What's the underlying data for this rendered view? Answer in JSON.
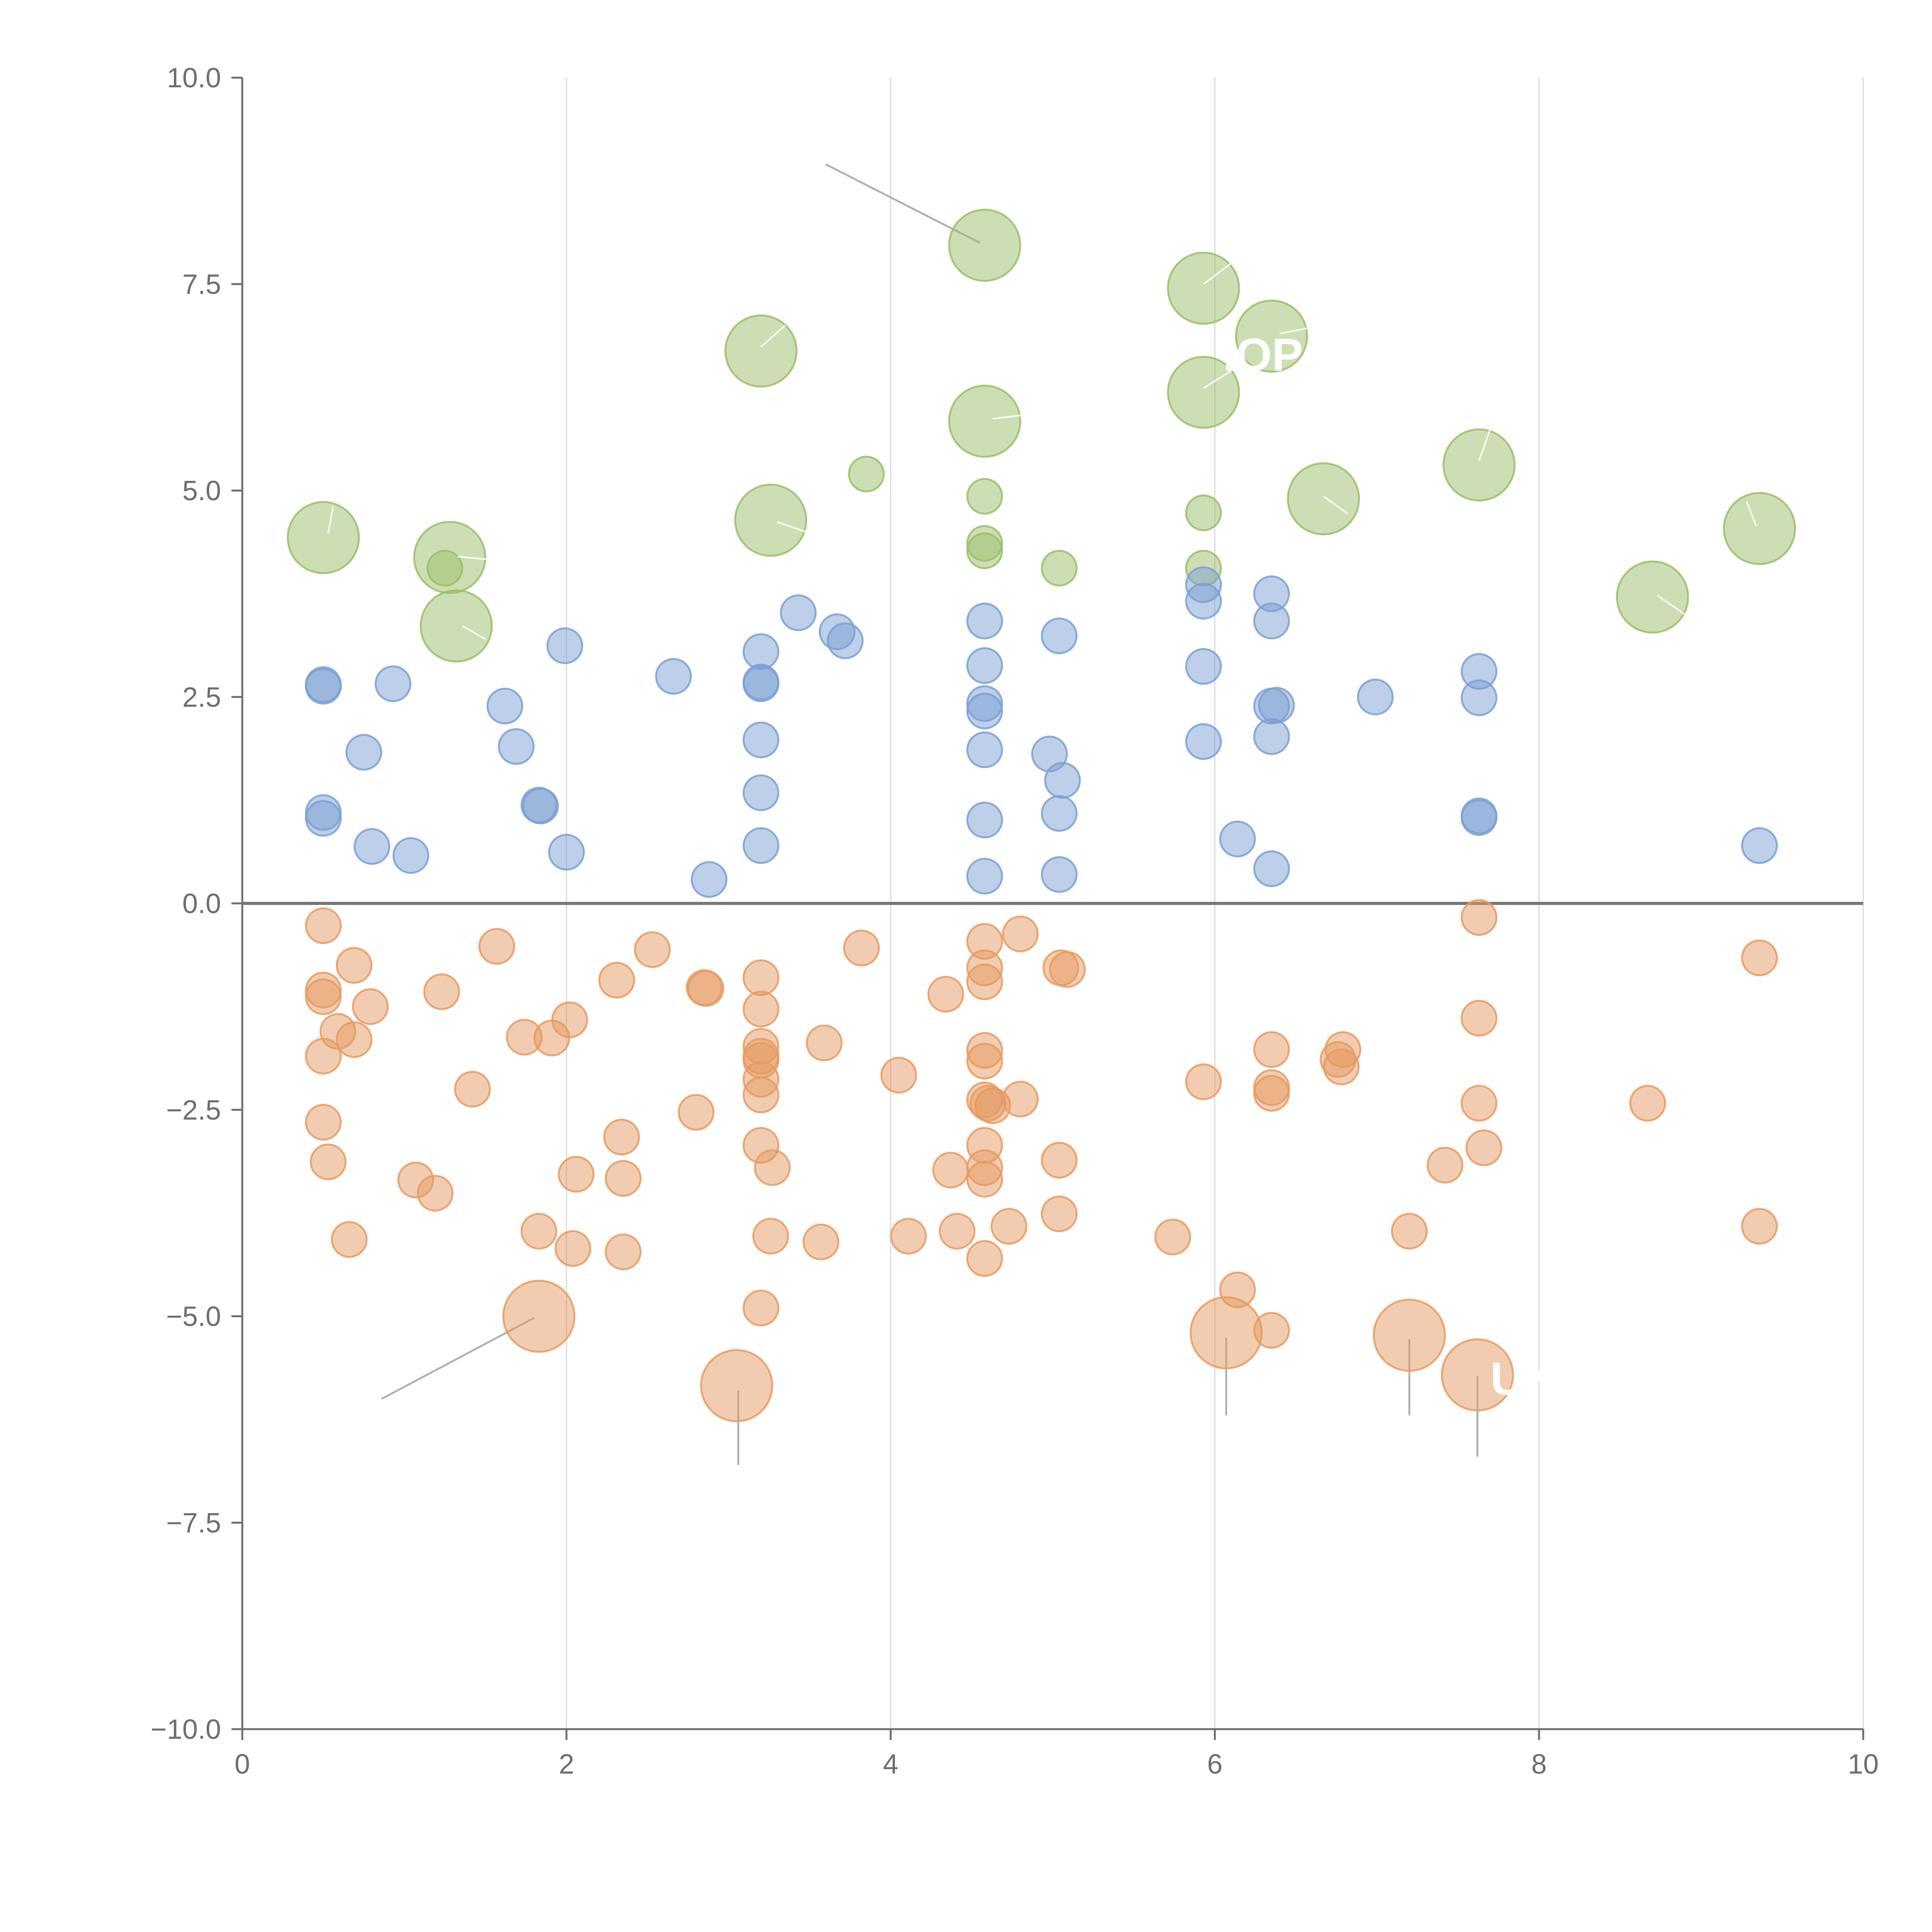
{
  "colors": {
    "positive_strong": "#9bbd6a",
    "positive_mid": "#7b9fd4",
    "negative": "#e69a62",
    "grid": "#d9d9d9",
    "axis": "#6e6e6e",
    "zero_line": "#777777"
  },
  "chart_data": {
    "type": "scatter",
    "title": "",
    "xlabel": "",
    "ylabel": "",
    "xlim": [
      0,
      10
    ],
    "ylim": [
      -10,
      10
    ],
    "grid": "vertical",
    "legend": "none",
    "x_ticks": [
      "0",
      "2",
      "4",
      "6",
      "8",
      "10"
    ],
    "y_ticks": [
      "−10.0",
      "−7.5",
      "−5.0",
      "−2.5",
      "0.0",
      "2.5",
      "5.0",
      "7.5",
      "10.0"
    ],
    "y_tick_values": [
      -10,
      -7.5,
      -5,
      -2.5,
      0,
      2.5,
      5,
      7.5,
      10
    ],
    "x_tick_values": [
      0,
      2,
      4,
      6,
      8,
      10
    ],
    "annotations": [
      "IOP",
      "UNS"
    ],
    "series": [
      {
        "color": "positive_strong",
        "points": [
          [
            4.58,
            7.97,
            3
          ],
          [
            5.93,
            7.45,
            3
          ],
          [
            6.35,
            6.87,
            3
          ],
          [
            3.2,
            6.69,
            3
          ],
          [
            5.93,
            6.19,
            3
          ],
          [
            4.58,
            5.84,
            3
          ],
          [
            7.63,
            5.31,
            3
          ],
          [
            6.67,
            4.9,
            3
          ],
          [
            9.36,
            4.54,
            3
          ],
          [
            0.5,
            4.43,
            3
          ],
          [
            3.26,
            4.64,
            3
          ],
          [
            1.28,
            4.19,
            3
          ],
          [
            8.7,
            3.71,
            3
          ],
          [
            1.32,
            3.36,
            3
          ],
          [
            3.85,
            5.2,
            1
          ],
          [
            4.58,
            4.93,
            1
          ],
          [
            5.93,
            4.73,
            1
          ],
          [
            4.58,
            4.36,
            1
          ],
          [
            4.58,
            4.27,
            1
          ],
          [
            5.04,
            4.06,
            1
          ],
          [
            5.93,
            4.06,
            1
          ],
          [
            1.25,
            4.06,
            1
          ]
        ]
      },
      {
        "color": "positive_mid",
        "points": [
          [
            0.5,
            2.65,
            1
          ],
          [
            0.5,
            2.63,
            1
          ],
          [
            0.93,
            2.66,
            1
          ],
          [
            1.62,
            2.39,
            1
          ],
          [
            1.99,
            3.12,
            1
          ],
          [
            0.75,
            1.83,
            1
          ],
          [
            1.69,
            1.9,
            1
          ],
          [
            1.83,
            1.19,
            1
          ],
          [
            1.84,
            1.18,
            1
          ],
          [
            0.5,
            1.1,
            1
          ],
          [
            0.5,
            1.03,
            1
          ],
          [
            0.8,
            0.69,
            1
          ],
          [
            1.04,
            0.58,
            1
          ],
          [
            2.0,
            0.62,
            1
          ],
          [
            2.66,
            2.75,
            1
          ],
          [
            3.2,
            3.05,
            1
          ],
          [
            3.2,
            2.66,
            1
          ],
          [
            3.2,
            2.68,
            1
          ],
          [
            3.43,
            3.52,
            1
          ],
          [
            3.67,
            3.29,
            1
          ],
          [
            3.72,
            3.18,
            1
          ],
          [
            3.2,
            1.98,
            1
          ],
          [
            3.2,
            1.34,
            1
          ],
          [
            3.2,
            0.7,
            1
          ],
          [
            2.88,
            0.29,
            1
          ],
          [
            4.58,
            3.42,
            1
          ],
          [
            4.58,
            2.88,
            1
          ],
          [
            4.58,
            2.42,
            1
          ],
          [
            4.58,
            2.33,
            1
          ],
          [
            4.58,
            1.86,
            1
          ],
          [
            4.58,
            1.01,
            1
          ],
          [
            4.58,
            0.33,
            1
          ],
          [
            5.04,
            3.24,
            1
          ],
          [
            4.98,
            1.81,
            1
          ],
          [
            5.06,
            1.49,
            1
          ],
          [
            5.04,
            1.09,
            1
          ],
          [
            5.04,
            0.35,
            1
          ],
          [
            5.93,
            3.86,
            1
          ],
          [
            5.93,
            3.66,
            1
          ],
          [
            5.93,
            2.87,
            1
          ],
          [
            5.93,
            1.96,
            1
          ],
          [
            6.35,
            3.75,
            1
          ],
          [
            6.35,
            3.42,
            1
          ],
          [
            6.35,
            2.39,
            1
          ],
          [
            6.38,
            2.4,
            1
          ],
          [
            6.35,
            2.02,
            1
          ],
          [
            6.14,
            0.78,
            1
          ],
          [
            6.35,
            0.42,
            1
          ],
          [
            6.99,
            2.5,
            1
          ],
          [
            7.63,
            2.81,
            1
          ],
          [
            7.63,
            2.49,
            1
          ],
          [
            7.63,
            1.06,
            1
          ],
          [
            7.63,
            1.04,
            1
          ],
          [
            9.36,
            0.7,
            1
          ]
        ]
      },
      {
        "color": "negative",
        "points": [
          [
            1.83,
            -5.0,
            3
          ],
          [
            3.05,
            -5.84,
            3
          ],
          [
            6.07,
            -5.2,
            3
          ],
          [
            7.2,
            -5.23,
            3
          ],
          [
            7.62,
            -5.71,
            3
          ],
          [
            0.5,
            -0.27,
            1
          ],
          [
            0.5,
            -1.05,
            1
          ],
          [
            0.5,
            -1.13,
            1
          ],
          [
            0.69,
            -0.75,
            1
          ],
          [
            0.79,
            -1.25,
            1
          ],
          [
            0.59,
            -1.55,
            1
          ],
          [
            0.69,
            -1.65,
            1
          ],
          [
            0.5,
            -1.85,
            1
          ],
          [
            0.5,
            -2.65,
            1
          ],
          [
            0.53,
            -3.13,
            1
          ],
          [
            0.66,
            -4.07,
            1
          ],
          [
            1.07,
            -3.35,
            1
          ],
          [
            1.19,
            -3.51,
            1
          ],
          [
            1.23,
            -1.07,
            1
          ],
          [
            1.42,
            -2.25,
            1
          ],
          [
            1.57,
            -0.52,
            1
          ],
          [
            1.74,
            -1.62,
            1
          ],
          [
            1.91,
            -1.63,
            1
          ],
          [
            2.02,
            -1.41,
            1
          ],
          [
            1.83,
            -3.97,
            1
          ],
          [
            2.04,
            -4.18,
            1
          ],
          [
            2.06,
            -3.28,
            1
          ],
          [
            2.31,
            -0.93,
            1
          ],
          [
            2.34,
            -2.83,
            1
          ],
          [
            2.35,
            -3.33,
            1
          ],
          [
            2.35,
            -4.22,
            1
          ],
          [
            2.53,
            -0.56,
            1
          ],
          [
            2.8,
            -2.53,
            1
          ],
          [
            2.85,
            -1.02,
            1
          ],
          [
            2.86,
            -1.03,
            1
          ],
          [
            3.2,
            -0.9,
            1
          ],
          [
            3.2,
            -1.28,
            1
          ],
          [
            3.2,
            -1.73,
            1
          ],
          [
            3.2,
            -1.85,
            1
          ],
          [
            3.2,
            -1.9,
            1
          ],
          [
            3.2,
            -2.13,
            1
          ],
          [
            3.2,
            -2.32,
            1
          ],
          [
            3.2,
            -2.93,
            1
          ],
          [
            3.27,
            -3.2,
            1
          ],
          [
            3.26,
            -4.03,
            1
          ],
          [
            3.2,
            -4.9,
            1
          ],
          [
            3.57,
            -4.1,
            1
          ],
          [
            3.59,
            -1.69,
            1
          ],
          [
            3.82,
            -0.54,
            1
          ],
          [
            4.05,
            -2.08,
            1
          ],
          [
            4.11,
            -4.03,
            1
          ],
          [
            4.34,
            -1.1,
            1
          ],
          [
            4.37,
            -3.23,
            1
          ],
          [
            4.41,
            -3.97,
            1
          ],
          [
            4.58,
            -0.46,
            1
          ],
          [
            4.58,
            -0.78,
            1
          ],
          [
            4.58,
            -0.95,
            1
          ],
          [
            4.58,
            -1.78,
            1
          ],
          [
            4.58,
            -1.91,
            1
          ],
          [
            4.58,
            -2.38,
            1
          ],
          [
            4.6,
            -2.42,
            1
          ],
          [
            4.63,
            -2.45,
            1
          ],
          [
            4.58,
            -2.93,
            1
          ],
          [
            4.58,
            -3.2,
            1
          ],
          [
            4.58,
            -3.34,
            1
          ],
          [
            4.58,
            -4.3,
            1
          ],
          [
            4.73,
            -3.91,
            1
          ],
          [
            4.8,
            -0.37,
            1
          ],
          [
            4.8,
            -2.37,
            1
          ],
          [
            5.05,
            -0.78,
            1
          ],
          [
            5.09,
            -0.8,
            1
          ],
          [
            5.04,
            -3.11,
            1
          ],
          [
            5.04,
            -3.76,
            1
          ],
          [
            5.74,
            -4.04,
            1
          ],
          [
            5.93,
            -2.16,
            1
          ],
          [
            6.14,
            -4.68,
            1
          ],
          [
            6.35,
            -1.77,
            1
          ],
          [
            6.35,
            -2.23,
            1
          ],
          [
            6.35,
            -2.3,
            1
          ],
          [
            6.35,
            -5.17,
            1
          ],
          [
            6.79,
            -1.77,
            1
          ],
          [
            6.76,
            -1.89,
            1
          ],
          [
            6.78,
            -1.98,
            1
          ],
          [
            7.2,
            -3.97,
            1
          ],
          [
            7.42,
            -3.17,
            1
          ],
          [
            7.63,
            -0.17,
            1
          ],
          [
            7.63,
            -1.39,
            1
          ],
          [
            7.63,
            -2.42,
            1
          ],
          [
            7.66,
            -2.96,
            1
          ],
          [
            8.67,
            -2.42,
            1
          ],
          [
            9.36,
            -0.66,
            1
          ],
          [
            9.36,
            -3.91,
            1
          ]
        ]
      }
    ],
    "leader_lines": [
      [
        3.6,
        8.95,
        4.55,
        8.0
      ],
      [
        0.86,
        -6.0,
        1.8,
        -5.02
      ],
      [
        3.06,
        -5.9,
        3.06,
        -6.8
      ],
      [
        6.07,
        -5.26,
        6.07,
        -6.2
      ],
      [
        7.2,
        -5.28,
        7.2,
        -6.2
      ],
      [
        7.62,
        -5.72,
        7.62,
        -6.7
      ]
    ],
    "light_leaders": [
      [
        5.93,
        7.5,
        6.1,
        7.75
      ],
      [
        6.4,
        6.9,
        6.58,
        6.97
      ],
      [
        3.2,
        6.74,
        3.35,
        7.0
      ],
      [
        5.93,
        6.24,
        6.1,
        6.45
      ],
      [
        4.63,
        5.87,
        4.85,
        5.92
      ],
      [
        7.63,
        5.36,
        7.7,
        5.75
      ],
      [
        6.67,
        4.93,
        6.82,
        4.72
      ],
      [
        9.34,
        4.57,
        9.28,
        4.87
      ],
      [
        0.53,
        4.48,
        0.56,
        4.8
      ],
      [
        3.3,
        4.62,
        3.55,
        4.45
      ],
      [
        1.33,
        4.2,
        1.6,
        4.15
      ],
      [
        8.73,
        3.73,
        8.9,
        3.5
      ],
      [
        1.36,
        3.36,
        1.5,
        3.2
      ]
    ],
    "annotation_positions": [
      {
        "text_index": 0,
        "x": 6.05,
        "y": 6.45
      },
      {
        "text_index": 1,
        "x": 7.7,
        "y": -5.95
      }
    ]
  }
}
